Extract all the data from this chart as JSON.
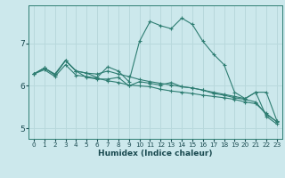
{
  "title": "",
  "xlabel": "Humidex (Indice chaleur)",
  "bg_color": "#cce8ec",
  "line_color": "#2e7d72",
  "grid_color": "#b8d8dc",
  "xlim": [
    -0.5,
    23.5
  ],
  "ylim": [
    4.75,
    7.9
  ],
  "yticks": [
    5,
    6,
    7
  ],
  "xtick_labels": [
    "0",
    "1",
    "2",
    "3",
    "4",
    "5",
    "6",
    "7",
    "8",
    "9",
    "10",
    "11",
    "12",
    "13",
    "14",
    "15",
    "16",
    "17",
    "18",
    "19",
    "20",
    "21",
    "22",
    "23"
  ],
  "series": [
    [
      6.28,
      6.38,
      6.22,
      6.5,
      6.25,
      6.22,
      6.18,
      6.12,
      6.08,
      6.02,
      6.0,
      5.98,
      5.92,
      5.88,
      5.85,
      5.82,
      5.78,
      5.75,
      5.72,
      5.68,
      5.62,
      5.58,
      5.35,
      5.15
    ],
    [
      6.28,
      6.42,
      6.26,
      6.6,
      6.35,
      6.3,
      6.28,
      6.35,
      6.28,
      6.22,
      6.15,
      6.1,
      6.06,
      6.02,
      5.98,
      5.95,
      5.9,
      5.85,
      5.8,
      5.75,
      5.7,
      5.85,
      5.85,
      5.18
    ],
    [
      6.28,
      6.42,
      6.28,
      6.6,
      6.35,
      6.3,
      6.2,
      6.45,
      6.35,
      6.1,
      7.05,
      7.52,
      7.42,
      7.35,
      7.6,
      7.45,
      7.05,
      6.75,
      6.5,
      5.85,
      5.7,
      5.85,
      5.28,
      5.1
    ],
    [
      6.28,
      6.42,
      6.26,
      6.6,
      6.35,
      6.2,
      6.16,
      6.16,
      6.2,
      6.0,
      6.1,
      6.06,
      6.02,
      6.08,
      5.98,
      5.95,
      5.9,
      5.82,
      5.78,
      5.72,
      5.68,
      5.62,
      5.32,
      5.16
    ]
  ]
}
